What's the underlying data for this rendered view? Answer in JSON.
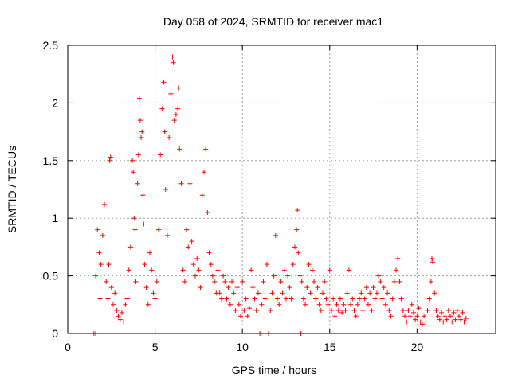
{
  "chart_data": {
    "type": "scatter",
    "title": "Day 058 of 2024, SRMTID for receiver mac1",
    "xlabel": "GPS time / hours",
    "ylabel": "SRMTID / TECUs",
    "xlim": [
      0,
      24.5
    ],
    "ylim": [
      0,
      2.5
    ],
    "xticks": [
      0,
      5,
      10,
      15,
      20
    ],
    "xtick_labels": [
      "0",
      "5",
      "10",
      "15",
      "20"
    ],
    "yticks": [
      0,
      0.5,
      1,
      1.5,
      2,
      2.5
    ],
    "ytick_labels": [
      "0",
      "0.5",
      "1",
      "1.5",
      "2",
      "2.5"
    ],
    "grid": true,
    "marker": "+",
    "color": "#ff0000",
    "series": [
      {
        "name": "SRMTID",
        "points": [
          [
            1.5,
            0.0
          ],
          [
            1.6,
            0.0
          ],
          [
            1.6,
            0.5
          ],
          [
            1.7,
            0.9
          ],
          [
            1.8,
            0.7
          ],
          [
            1.85,
            0.3
          ],
          [
            1.9,
            0.6
          ],
          [
            2.0,
            0.85
          ],
          [
            2.1,
            1.12
          ],
          [
            2.2,
            0.45
          ],
          [
            2.3,
            0.3
          ],
          [
            2.35,
            0.6
          ],
          [
            2.4,
            1.5
          ],
          [
            2.45,
            1.53
          ],
          [
            2.5,
            0.4
          ],
          [
            2.6,
            0.25
          ],
          [
            2.7,
            0.35
          ],
          [
            2.8,
            0.2
          ],
          [
            2.9,
            0.15
          ],
          [
            3.0,
            0.12
          ],
          [
            3.1,
            0.18
          ],
          [
            3.2,
            0.1
          ],
          [
            3.3,
            0.25
          ],
          [
            3.4,
            0.3
          ],
          [
            3.5,
            0.55
          ],
          [
            3.6,
            0.75
          ],
          [
            3.7,
            1.5
          ],
          [
            3.75,
            1.4
          ],
          [
            3.8,
            1.0
          ],
          [
            3.85,
            0.9
          ],
          [
            3.9,
            0.45
          ],
          [
            4.0,
            1.3
          ],
          [
            4.05,
            1.55
          ],
          [
            4.1,
            2.04
          ],
          [
            4.15,
            1.85
          ],
          [
            4.2,
            1.7
          ],
          [
            4.25,
            1.75
          ],
          [
            4.3,
            1.2
          ],
          [
            4.35,
            0.95
          ],
          [
            4.4,
            0.6
          ],
          [
            4.5,
            0.4
          ],
          [
            4.6,
            0.25
          ],
          [
            4.7,
            0.7
          ],
          [
            4.8,
            0.55
          ],
          [
            4.9,
            0.35
          ],
          [
            5.0,
            0.3
          ],
          [
            5.1,
            0.45
          ],
          [
            5.2,
            0.9
          ],
          [
            5.3,
            1.55
          ],
          [
            5.4,
            1.95
          ],
          [
            5.45,
            2.2
          ],
          [
            5.5,
            2.18
          ],
          [
            5.55,
            1.75
          ],
          [
            5.6,
            1.25
          ],
          [
            5.7,
            0.85
          ],
          [
            5.8,
            1.7
          ],
          [
            5.9,
            2.08
          ],
          [
            6.0,
            2.4
          ],
          [
            6.05,
            2.35
          ],
          [
            6.1,
            1.85
          ],
          [
            6.2,
            1.9
          ],
          [
            6.3,
            1.95
          ],
          [
            6.35,
            2.13
          ],
          [
            6.4,
            1.6
          ],
          [
            6.5,
            1.3
          ],
          [
            6.6,
            0.55
          ],
          [
            6.7,
            0.45
          ],
          [
            6.8,
            0.9
          ],
          [
            6.9,
            0.75
          ],
          [
            7.0,
            1.3
          ],
          [
            7.1,
            0.8
          ],
          [
            7.2,
            0.6
          ],
          [
            7.3,
            0.5
          ],
          [
            7.4,
            0.65
          ],
          [
            7.5,
            0.55
          ],
          [
            7.6,
            0.4
          ],
          [
            7.7,
            1.2
          ],
          [
            7.8,
            1.4
          ],
          [
            7.9,
            1.6
          ],
          [
            8.0,
            1.05
          ],
          [
            8.1,
            0.7
          ],
          [
            8.2,
            0.6
          ],
          [
            8.3,
            0.5
          ],
          [
            8.4,
            0.45
          ],
          [
            8.5,
            0.35
          ],
          [
            8.6,
            0.55
          ],
          [
            8.7,
            0.35
          ],
          [
            8.8,
            0.3
          ],
          [
            8.9,
            0.5
          ],
          [
            9.0,
            0.45
          ],
          [
            9.1,
            0.3
          ],
          [
            9.2,
            0.4
          ],
          [
            9.3,
            0.25
          ],
          [
            9.4,
            0.45
          ],
          [
            9.5,
            0.35
          ],
          [
            9.6,
            0.2
          ],
          [
            9.7,
            0.4
          ],
          [
            9.8,
            0.25
          ],
          [
            9.9,
            0.15
          ],
          [
            10.0,
            0.45
          ],
          [
            10.1,
            0.2
          ],
          [
            10.2,
            0.3
          ],
          [
            10.3,
            0.15
          ],
          [
            10.4,
            0.22
          ],
          [
            10.5,
            0.55
          ],
          [
            10.6,
            0.4
          ],
          [
            10.7,
            0.3
          ],
          [
            10.8,
            0.2
          ],
          [
            10.9,
            0.35
          ],
          [
            11.0,
            0.0
          ],
          [
            11.1,
            0.25
          ],
          [
            11.2,
            0.45
          ],
          [
            11.3,
            0.3
          ],
          [
            11.4,
            0.6
          ],
          [
            11.5,
            0.0
          ],
          [
            11.6,
            0.2
          ],
          [
            11.7,
            0.35
          ],
          [
            11.8,
            0.5
          ],
          [
            11.9,
            0.85
          ],
          [
            12.0,
            0.3
          ],
          [
            12.1,
            0.25
          ],
          [
            12.2,
            0.45
          ],
          [
            12.3,
            0.35
          ],
          [
            12.4,
            0.55
          ],
          [
            12.5,
            0.3
          ],
          [
            12.6,
            0.5
          ],
          [
            12.7,
            0.4
          ],
          [
            12.8,
            0.3
          ],
          [
            12.9,
            0.6
          ],
          [
            13.0,
            0.75
          ],
          [
            13.1,
            0.9
          ],
          [
            13.15,
            1.07
          ],
          [
            13.2,
            0.7
          ],
          [
            13.3,
            0.5
          ],
          [
            13.35,
            0.0
          ],
          [
            13.4,
            0.45
          ],
          [
            13.5,
            0.3
          ],
          [
            13.6,
            0.25
          ],
          [
            13.7,
            0.4
          ],
          [
            13.8,
            0.6
          ],
          [
            13.9,
            0.35
          ],
          [
            14.0,
            0.55
          ],
          [
            14.1,
            0.45
          ],
          [
            14.2,
            0.3
          ],
          [
            14.3,
            0.4
          ],
          [
            14.4,
            0.25
          ],
          [
            14.5,
            0.2
          ],
          [
            14.6,
            0.35
          ],
          [
            14.7,
            0.45
          ],
          [
            14.8,
            0.3
          ],
          [
            14.9,
            0.25
          ],
          [
            15.0,
            0.55
          ],
          [
            15.1,
            0.2
          ],
          [
            15.2,
            0.3
          ],
          [
            15.3,
            0.15
          ],
          [
            15.4,
            0.25
          ],
          [
            15.5,
            0.2
          ],
          [
            15.6,
            0.3
          ],
          [
            15.7,
            0.18
          ],
          [
            15.8,
            0.25
          ],
          [
            15.9,
            0.2
          ],
          [
            16.0,
            0.35
          ],
          [
            16.1,
            0.55
          ],
          [
            16.2,
            0.25
          ],
          [
            16.3,
            0.3
          ],
          [
            16.4,
            0.2
          ],
          [
            16.5,
            0.15
          ],
          [
            16.6,
            0.25
          ],
          [
            16.7,
            0.3
          ],
          [
            16.8,
            0.35
          ],
          [
            16.9,
            0.2
          ],
          [
            17.0,
            0.3
          ],
          [
            17.1,
            0.4
          ],
          [
            17.2,
            0.25
          ],
          [
            17.3,
            0.35
          ],
          [
            17.4,
            0.2
          ],
          [
            17.5,
            0.4
          ],
          [
            17.6,
            0.3
          ],
          [
            17.7,
            0.35
          ],
          [
            17.8,
            0.5
          ],
          [
            17.9,
            0.45
          ],
          [
            18.0,
            0.3
          ],
          [
            18.1,
            0.4
          ],
          [
            18.2,
            0.25
          ],
          [
            18.3,
            0.35
          ],
          [
            18.4,
            0.2
          ],
          [
            18.5,
            0.15
          ],
          [
            18.6,
            0.3
          ],
          [
            18.7,
            0.45
          ],
          [
            18.8,
            0.55
          ],
          [
            18.9,
            0.65
          ],
          [
            19.0,
            0.45
          ],
          [
            19.1,
            0.3
          ],
          [
            19.2,
            0.2
          ],
          [
            19.3,
            0.15
          ],
          [
            19.4,
            0.1
          ],
          [
            19.5,
            0.2
          ],
          [
            19.6,
            0.15
          ],
          [
            19.7,
            0.25
          ],
          [
            19.8,
            0.18
          ],
          [
            19.9,
            0.12
          ],
          [
            20.0,
            0.15
          ],
          [
            20.1,
            0.22
          ],
          [
            20.2,
            0.1
          ],
          [
            20.3,
            0.08
          ],
          [
            20.4,
            0.15
          ],
          [
            20.5,
            0.1
          ],
          [
            20.6,
            0.2
          ],
          [
            20.7,
            0.3
          ],
          [
            20.8,
            0.45
          ],
          [
            20.85,
            0.65
          ],
          [
            20.9,
            0.62
          ],
          [
            21.0,
            0.35
          ],
          [
            21.1,
            0.2
          ],
          [
            21.2,
            0.15
          ],
          [
            21.3,
            0.12
          ],
          [
            21.4,
            0.18
          ],
          [
            21.5,
            0.1
          ],
          [
            21.6,
            0.15
          ],
          [
            21.7,
            0.12
          ],
          [
            21.8,
            0.2
          ],
          [
            21.9,
            0.15
          ],
          [
            22.0,
            0.1
          ],
          [
            22.1,
            0.18
          ],
          [
            22.2,
            0.12
          ],
          [
            22.3,
            0.2
          ],
          [
            22.4,
            0.15
          ],
          [
            22.5,
            0.12
          ],
          [
            22.6,
            0.18
          ],
          [
            22.7,
            0.1
          ],
          [
            22.8,
            0.13
          ]
        ]
      }
    ]
  }
}
